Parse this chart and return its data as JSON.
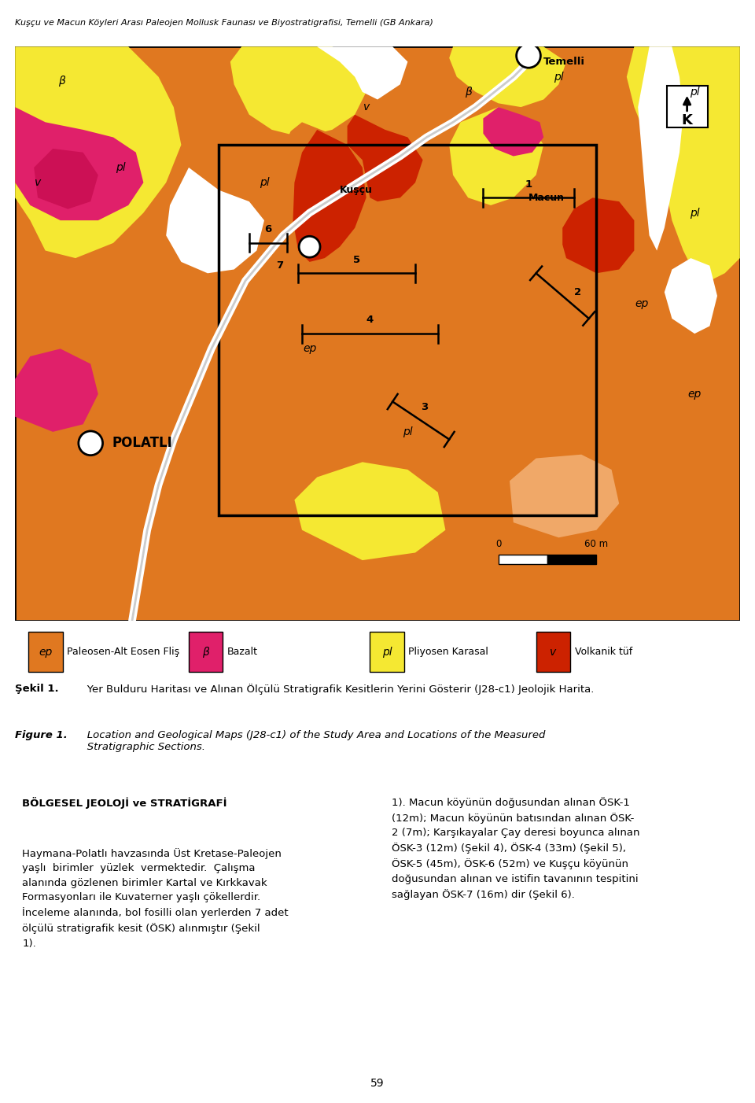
{
  "header_text": "Kuşçu ve Macun Köyleri Arası Paleojen Mollusk Faunası ve Biyostratigrafisi, Temelli (GB Ankara)",
  "caption_tr_bold": "Şekil 1.",
  "caption_tr_rest": "   Yer Bulduru Haritası ve Alınan Ölçülü Stratigrafik Kesitlerin Yerini Gösterir (J28-c1) Jeolojik Harita.",
  "caption_en_bold": "Figure 1.",
  "caption_en_rest": "   Location and Geological Maps (J28-c1) of the Study Area and Locations of the Measured\n   Stratigraphic Sections.",
  "legend_items": [
    {
      "symbol": "ep",
      "color": "#E07820",
      "label": "Paleosen-Alt Eosen Fliş"
    },
    {
      "symbol": "β",
      "color": "#E0206A",
      "label": "Bazalt"
    },
    {
      "symbol": "pl",
      "color": "#F5E832",
      "label": "Pliyosen Karasal"
    },
    {
      "symbol": "v",
      "color": "#CC2200",
      "label": "Volkanik tüf"
    }
  ],
  "page_number": "59",
  "colors": {
    "ep_orange": "#E07820",
    "beta_pink": "#E0206A",
    "pl_yellow": "#F5E832",
    "v_red": "#CC2200",
    "white": "#FFFFFF",
    "light_orange": "#F0A868",
    "dark_orange": "#C05010",
    "map_border": "#1A1A1A"
  }
}
